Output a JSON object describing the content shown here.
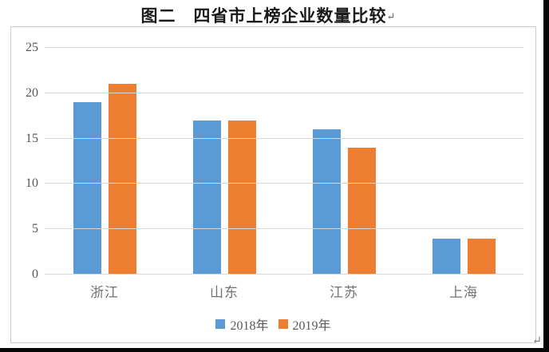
{
  "title": {
    "text": "图二　四省市上榜企业数量比较",
    "paragraph_mark": "↵"
  },
  "trailing_paragraph_mark": "↵",
  "colors": {
    "series_2018": "#5B9BD5",
    "series_2019": "#ED7D31",
    "gridline": "#D9D9D9",
    "axis_text": "#595959",
    "category_text": "#737373",
    "chart_border": "#CCCCCC",
    "crop_edge": "#060606"
  },
  "chart_data": {
    "type": "bar",
    "title": "图二　四省市上榜企业数量比较",
    "categories": [
      "浙江",
      "山东",
      "江苏",
      "上海"
    ],
    "series": [
      {
        "name": "2018年",
        "color": "#5B9BD5",
        "values": [
          19,
          17,
          16,
          4
        ]
      },
      {
        "name": "2019年",
        "color": "#ED7D31",
        "values": [
          21,
          17,
          14,
          4
        ]
      }
    ],
    "xlabel": "",
    "ylabel": "",
    "ylim": [
      0,
      25
    ],
    "yticks": [
      0,
      5,
      10,
      15,
      20,
      25
    ],
    "grid": true,
    "legend_position": "bottom"
  }
}
